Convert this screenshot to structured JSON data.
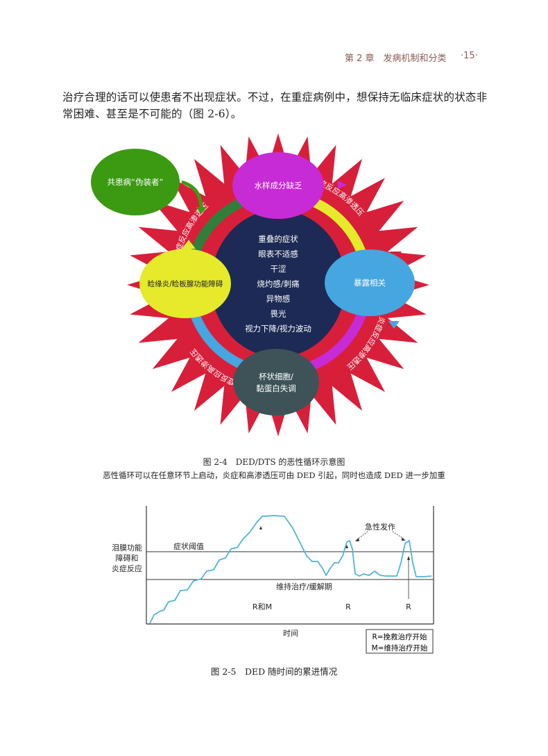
{
  "header": {
    "chapter": "第 2 章　发病机制和分类",
    "page": "·15·"
  },
  "paragraph": "治疗合理的话可以使患者不出现症状。不过，在重症病例中，想保持无临床症状的状态非常困难、甚至是不可能的（图 2-6）。",
  "figure_2_4": {
    "nodes": {
      "comorbid": "共患病“伪装者”",
      "aqueous": "水样成分缺乏",
      "blepharitis": "睑缘炎/睑板腺功能障碍",
      "exposure": "暴露相关",
      "goblet_line1": "杯状细胞/",
      "goblet_line2": "黏蛋白失调"
    },
    "center_symptoms": [
      "重叠的症状",
      "眼表不适感",
      "干涩",
      "烧灼感/刺痛",
      "异物感",
      "畏光",
      "视力下降/视力波动"
    ],
    "arc_label": "炎症反应高渗透压",
    "colors": {
      "star": "#d81f3a",
      "center": "#1c2a55",
      "comorbid": "#3b9a12",
      "aqueous": "#c72bd6",
      "blepharitis": "#e6ea2a",
      "exposure": "#45a6e0",
      "goblet": "#3d5358",
      "ring_green": "#2f7f3a",
      "ring_yellow": "#e6ea2a",
      "ring_magenta": "#c72bd6",
      "ring_blue": "#45a6e0"
    },
    "caption": "图 2-4　DED/DTS 的恶性循环示意图",
    "subcaption": "恶性循环可以在任意环节上启动，炎症和高渗透压可由 DED 引起，同时也造成 DED 进一步加重"
  },
  "figure_2_5": {
    "ylabel_lines": [
      "泪膜功能",
      "障碍和",
      "炎症反应"
    ],
    "xlabel": "时间",
    "threshold_label": "症状阈值",
    "maintenance_label": "维持治疗/缓解期",
    "acute_label": "急性发作",
    "markers": [
      "R和M",
      "R",
      "R"
    ],
    "legend": [
      "R=挽救治疗开始",
      "M=维持治疗开始"
    ],
    "curve_color": "#4fb3d9",
    "caption": "图 2-5　DED 随时间的累进情况"
  }
}
